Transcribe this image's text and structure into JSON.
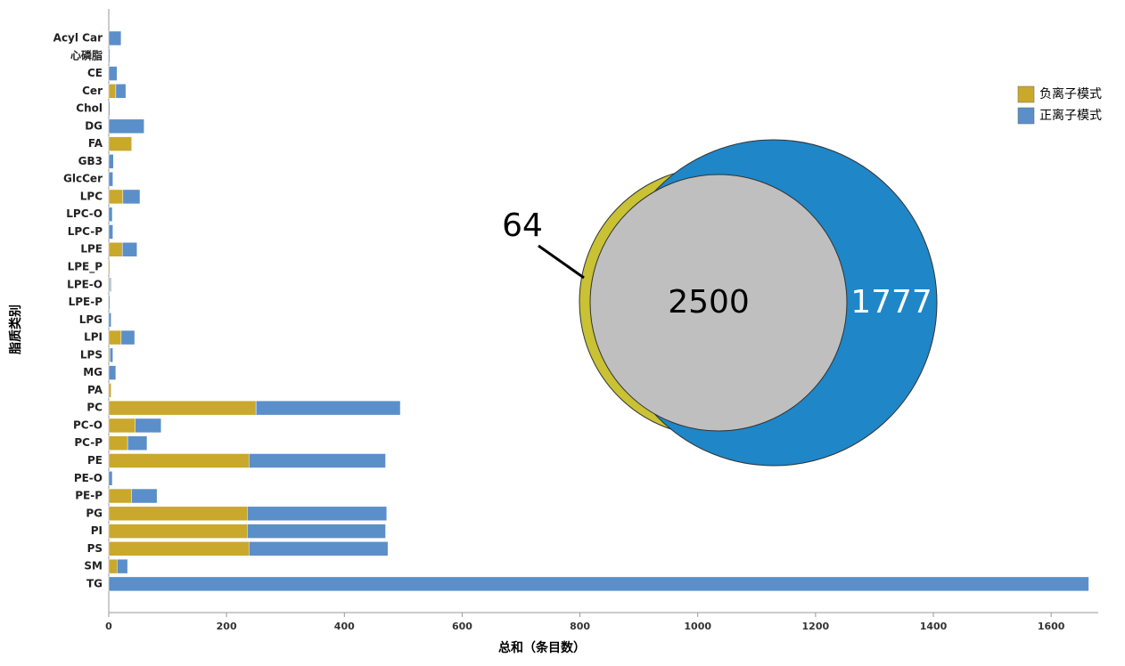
{
  "chart_data": [
    {
      "type": "stacked-barh",
      "categories": [
        "Acyl Car",
        "心磷脂",
        "CE",
        "Cer",
        "Chol",
        "DG",
        "FA",
        "GB3",
        "GlcCer",
        "LPC",
        "LPC-O",
        "LPC-P",
        "LPE",
        "LPE_P",
        "LPE-O",
        "LPE-P",
        "LPG",
        "LPI",
        "LPS",
        "MG",
        "PA",
        "PC",
        "PC-O",
        "PC-P",
        "PE",
        "PE-O",
        "PE-P",
        "PG",
        "PI",
        "PS",
        "SM",
        "TG"
      ],
      "series": [
        {
          "name": "负离子模式",
          "color": "#c9a82c",
          "values": [
            0,
            0,
            0,
            12,
            0,
            0,
            39,
            0,
            0,
            24,
            0,
            0,
            23,
            2,
            2,
            0,
            0,
            21,
            2,
            0,
            4,
            250,
            45,
            32,
            238,
            0,
            39,
            235,
            235,
            238,
            14,
            0
          ]
        },
        {
          "name": "正离子模式",
          "color": "#5b8fc9",
          "values": [
            21,
            2,
            14,
            17,
            2,
            60,
            0,
            8,
            7,
            29,
            6,
            7,
            25,
            0,
            2,
            2,
            4,
            23,
            5,
            12,
            0,
            245,
            44,
            33,
            232,
            6,
            43,
            237,
            235,
            236,
            18,
            1664
          ]
        }
      ],
      "xlim": [
        0,
        1680
      ],
      "xticks": [
        0,
        200,
        400,
        600,
        800,
        1000,
        1200,
        1400,
        1600
      ],
      "x_label": "总和（条目数）",
      "y_label": "脂质类别",
      "legend": "upper-right"
    },
    {
      "type": "venn",
      "values": [
        64,
        2500,
        1777
      ],
      "colors": [
        "#c8c234",
        "#bfbfbf",
        "#1f86c8"
      ]
    }
  ]
}
